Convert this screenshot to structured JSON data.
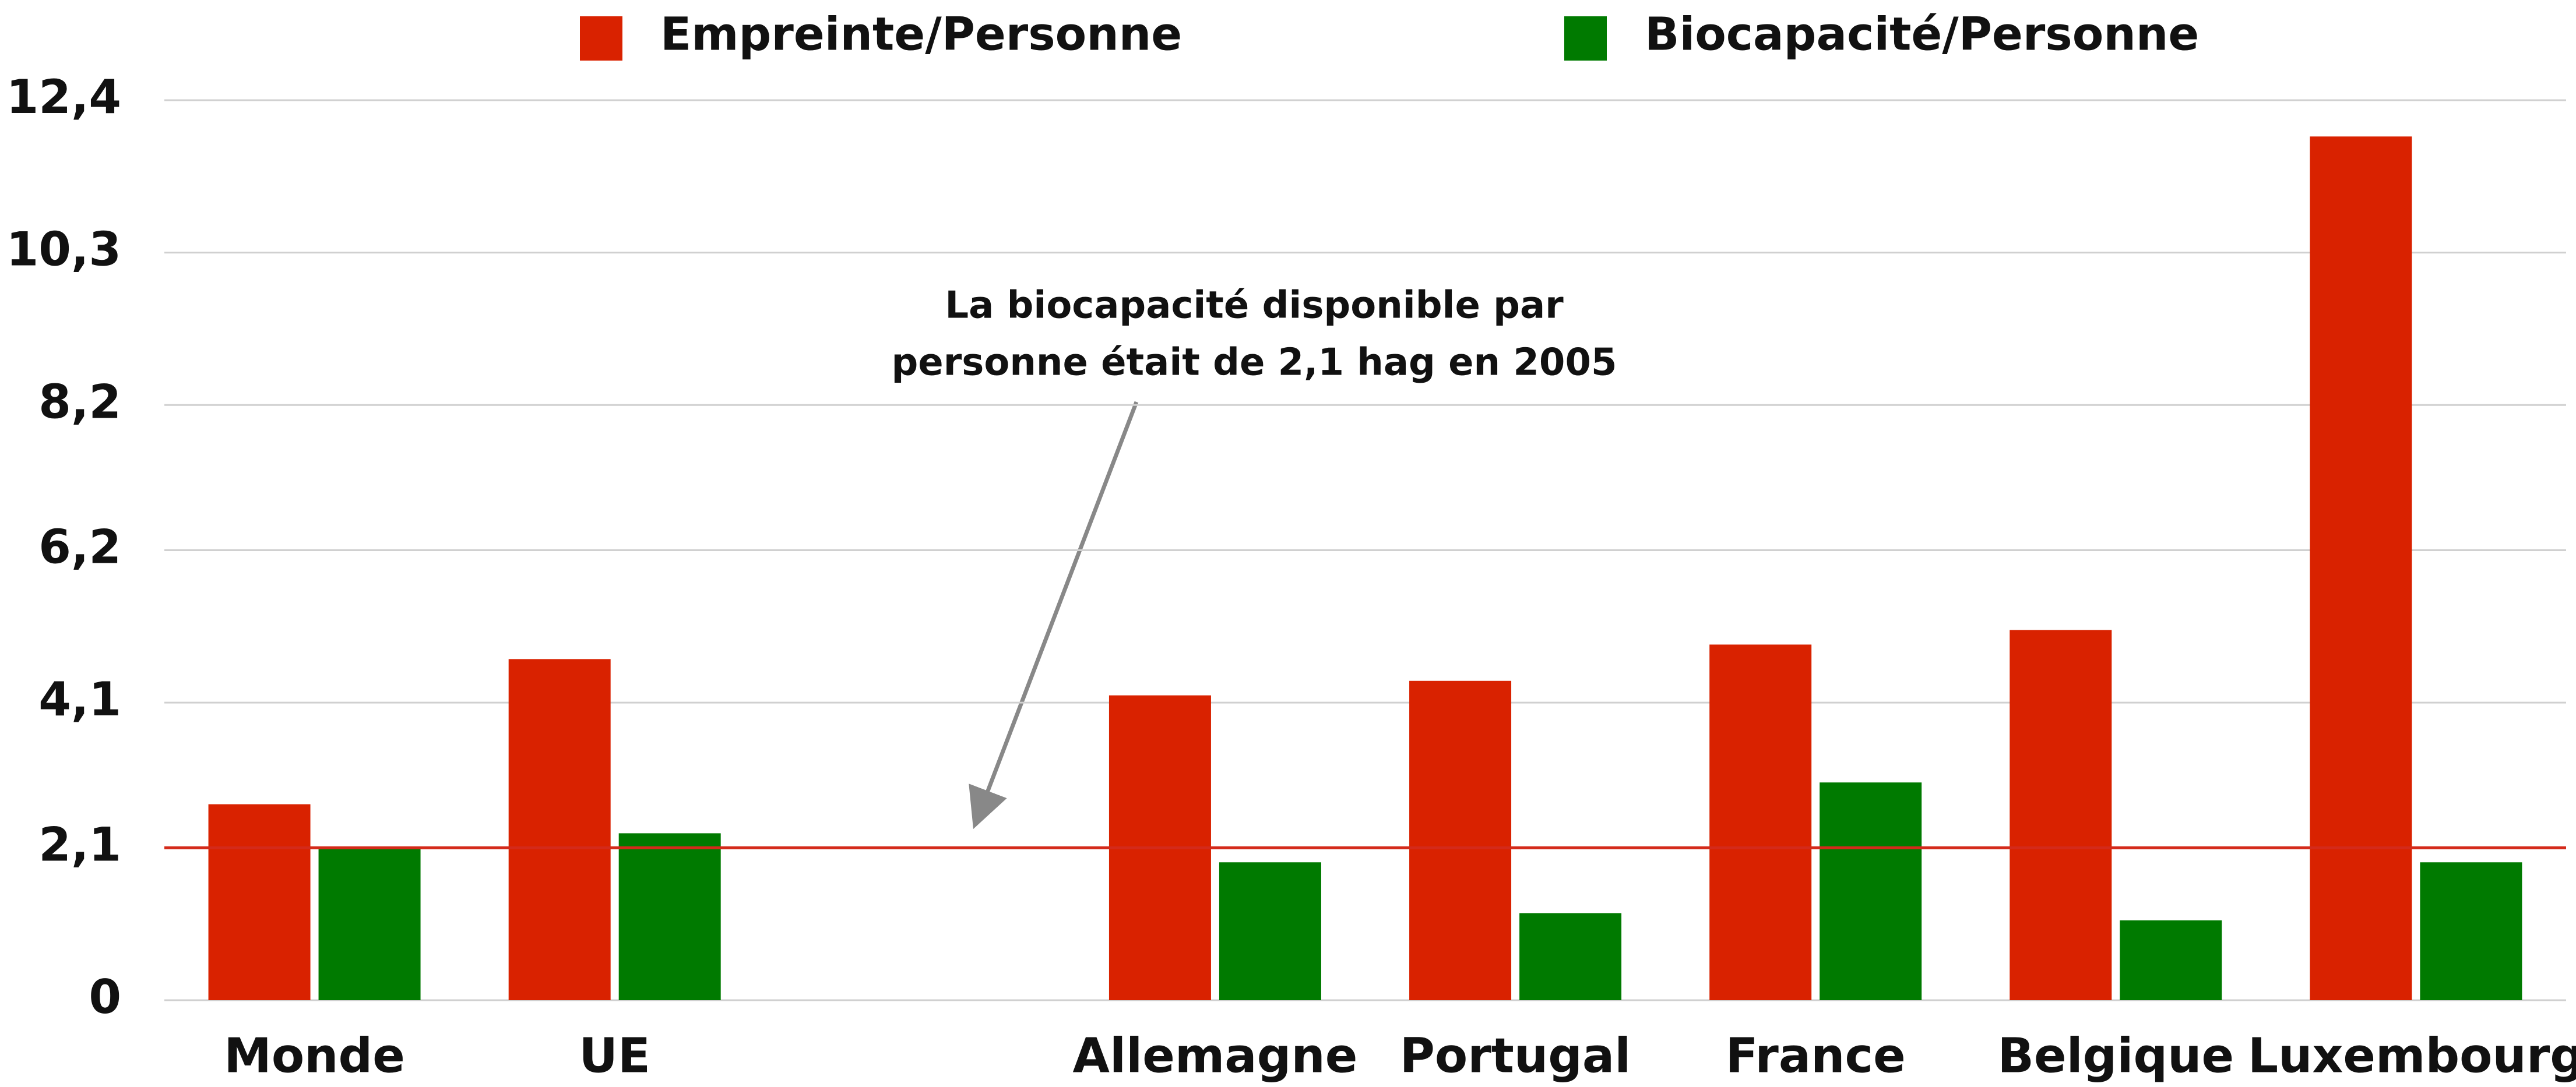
{
  "chart_data": {
    "type": "bar",
    "categories": [
      "Monde",
      "UE",
      null,
      "Allemagne",
      "Portugal",
      "France",
      "Belgique",
      "Luxembourg"
    ],
    "series": [
      {
        "name": "Empreinte/Personne",
        "color": "#d92200",
        "values": [
          2.7,
          4.7,
          null,
          4.2,
          4.4,
          4.9,
          5.1,
          11.9
        ]
      },
      {
        "name": "Biocapacité/Personne",
        "color": "#007a00",
        "values": [
          2.1,
          2.3,
          null,
          1.9,
          1.2,
          3.0,
          1.1,
          1.9
        ]
      }
    ],
    "ylim": [
      0,
      12.4
    ],
    "yticks": [
      0,
      {
        "value": 2.1,
        "label": "2,1"
      },
      {
        "value": 4.1,
        "label": "4,1"
      },
      {
        "value": 6.2,
        "label": "6,2"
      },
      {
        "value": 8.2,
        "label": "8,2"
      },
      {
        "value": 10.3,
        "label": "10,3"
      },
      {
        "value": 12.4,
        "label": "12,4"
      }
    ],
    "grid": true,
    "hline": {
      "value": 2.1,
      "color": "#d42a1a"
    },
    "annotation": [
      "La biocapacité disponible par",
      "personne était de 2,1 hag en 2005"
    ],
    "legend": "top"
  }
}
